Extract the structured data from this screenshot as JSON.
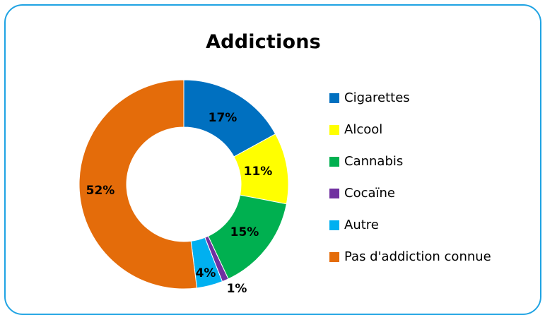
{
  "chart_data": {
    "type": "pie",
    "variant": "donut",
    "title": "Addictions",
    "legend_position": "right",
    "slices": [
      {
        "label": "Cigarettes",
        "value": 17,
        "display": "17%",
        "color": "#0070c0"
      },
      {
        "label": "Alcool",
        "value": 11,
        "display": "11%",
        "color": "#ffff00"
      },
      {
        "label": "Cannabis",
        "value": 15,
        "display": "15%",
        "color": "#00b050"
      },
      {
        "label": "Cocaïne",
        "value": 1,
        "display": "1%",
        "color": "#7030a0"
      },
      {
        "label": "Autre",
        "value": 4,
        "display": "4%",
        "color": "#00b0f0"
      },
      {
        "label": "Pas d'addiction connue",
        "value": 52,
        "display": "52%",
        "color": "#e46c0a"
      }
    ]
  },
  "frame_border_color": "#1fa3e3"
}
